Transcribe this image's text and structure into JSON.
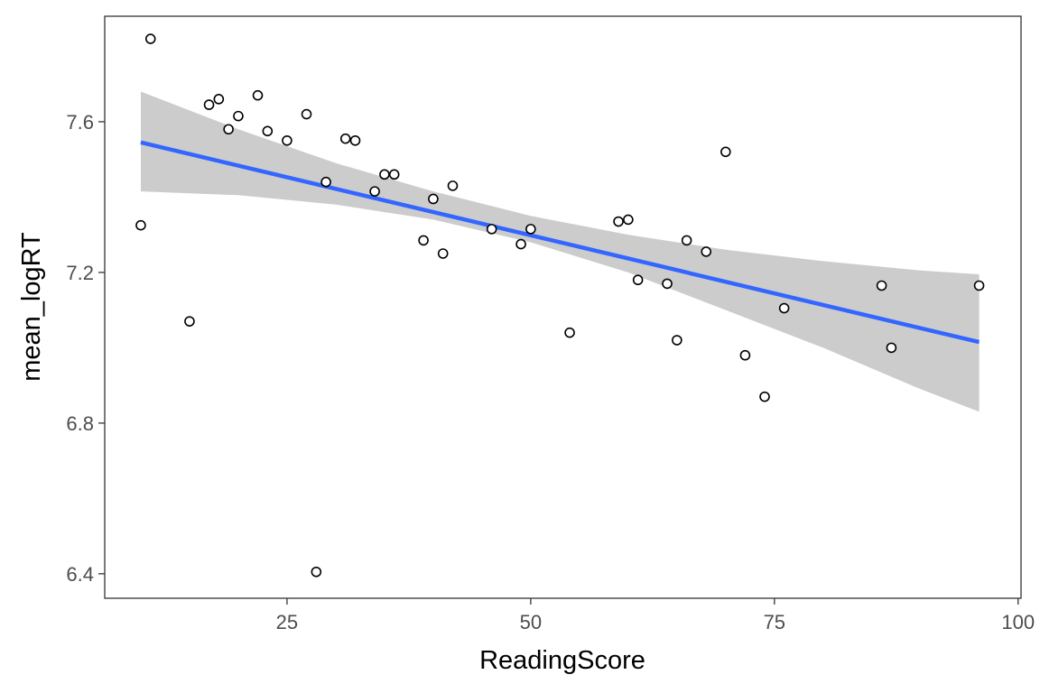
{
  "chart_data": {
    "type": "scatter",
    "title": "",
    "xlabel": "ReadingScore",
    "ylabel": "mean_logRT",
    "xlim": [
      6.3,
      100.3
    ],
    "ylim": [
      6.335,
      7.88
    ],
    "xticks": [
      25,
      50,
      75,
      100
    ],
    "yticks": [
      6.4,
      6.8,
      7.2,
      7.6
    ],
    "xtick_labels": [
      "25",
      "50",
      "75",
      "100"
    ],
    "ytick_labels": [
      "6.4",
      "6.8",
      "7.2",
      "7.6"
    ],
    "grid": false,
    "legend": "none",
    "points": [
      {
        "x": 10,
        "y": 7.325
      },
      {
        "x": 11,
        "y": 7.82
      },
      {
        "x": 15,
        "y": 7.07
      },
      {
        "x": 17,
        "y": 7.645
      },
      {
        "x": 18,
        "y": 7.66
      },
      {
        "x": 19,
        "y": 7.58
      },
      {
        "x": 20,
        "y": 7.615
      },
      {
        "x": 22,
        "y": 7.67
      },
      {
        "x": 23,
        "y": 7.575
      },
      {
        "x": 25,
        "y": 7.55
      },
      {
        "x": 27,
        "y": 7.62
      },
      {
        "x": 28,
        "y": 6.405
      },
      {
        "x": 29,
        "y": 7.44
      },
      {
        "x": 31,
        "y": 7.555
      },
      {
        "x": 32,
        "y": 7.55
      },
      {
        "x": 34,
        "y": 7.415
      },
      {
        "x": 35,
        "y": 7.46
      },
      {
        "x": 36,
        "y": 7.46
      },
      {
        "x": 39,
        "y": 7.285
      },
      {
        "x": 40,
        "y": 7.395
      },
      {
        "x": 41,
        "y": 7.25
      },
      {
        "x": 42,
        "y": 7.43
      },
      {
        "x": 46,
        "y": 7.315
      },
      {
        "x": 49,
        "y": 7.275
      },
      {
        "x": 50,
        "y": 7.315
      },
      {
        "x": 54,
        "y": 7.04
      },
      {
        "x": 59,
        "y": 7.335
      },
      {
        "x": 60,
        "y": 7.34
      },
      {
        "x": 61,
        "y": 7.18
      },
      {
        "x": 64,
        "y": 7.17
      },
      {
        "x": 65,
        "y": 7.02
      },
      {
        "x": 66,
        "y": 7.285
      },
      {
        "x": 68,
        "y": 7.255
      },
      {
        "x": 70,
        "y": 7.52
      },
      {
        "x": 72,
        "y": 6.98
      },
      {
        "x": 74,
        "y": 6.87
      },
      {
        "x": 76,
        "y": 7.105
      },
      {
        "x": 86,
        "y": 7.165
      },
      {
        "x": 87,
        "y": 7.0
      },
      {
        "x": 96,
        "y": 7.165
      }
    ],
    "regression_line": {
      "method": "lm",
      "color": "#3366ff",
      "x": [
        10,
        96
      ],
      "y": [
        7.545,
        7.015
      ]
    },
    "confidence_band": {
      "color": "#cccccc",
      "x": [
        10,
        20,
        30,
        40,
        50,
        60,
        70,
        80,
        90,
        96
      ],
      "lower": [
        7.415,
        7.405,
        7.38,
        7.34,
        7.28,
        7.2,
        7.1,
        7.0,
        6.89,
        6.83
      ],
      "upper": [
        7.68,
        7.58,
        7.49,
        7.415,
        7.35,
        7.3,
        7.26,
        7.23,
        7.205,
        7.195
      ]
    },
    "point_style": {
      "fill": "#ffffff",
      "stroke": "#000000"
    }
  }
}
